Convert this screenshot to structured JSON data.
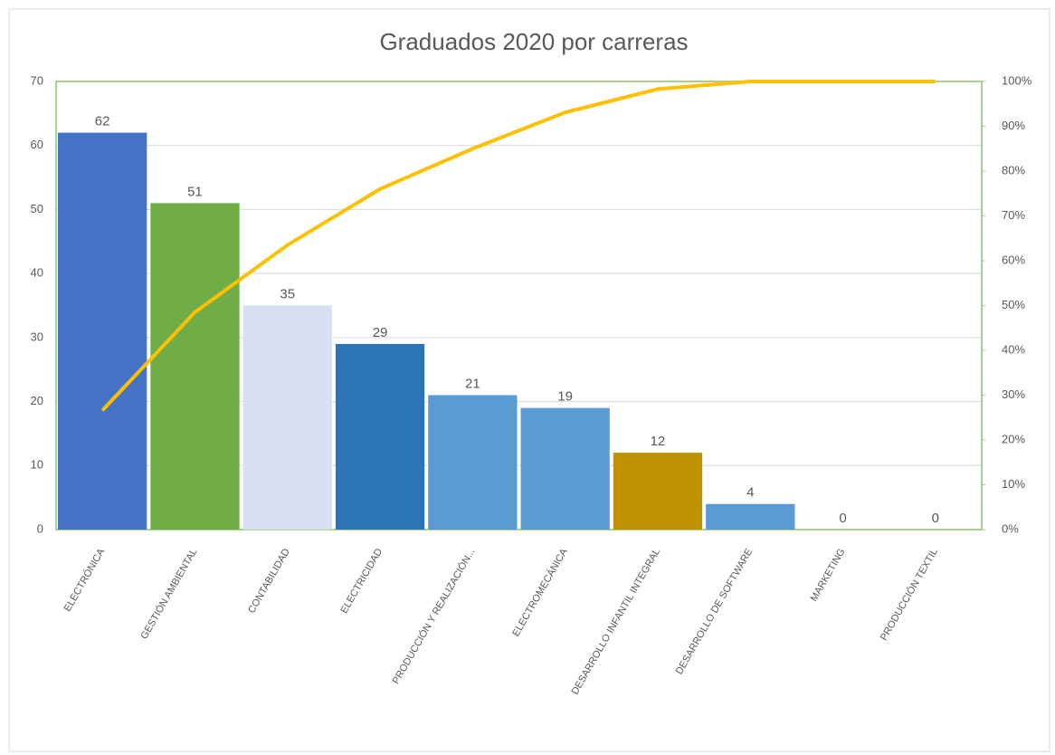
{
  "chart_data": {
    "type": "pareto",
    "title": "Graduados 2020 por carreras",
    "categories": [
      "ELECTRÓNICA",
      "GESTIÓN AMBIENTAL",
      "CONTABILIDAD",
      "ELECTRICIDAD",
      "PRODUCCIÓN Y REALIZACIÓN...",
      "ELECTROMECÁNICA",
      "DESARROLLO INFANTIL INTEGRAL",
      "DESARROLLO DE SOFTWARE",
      "MARKETING",
      "PRODUCCIÓN TEXTIL"
    ],
    "series": [
      {
        "values": [
          62,
          51,
          35,
          29,
          21,
          19,
          12,
          4,
          0,
          0
        ],
        "colors": [
          "#4472c4",
          "#70ad47",
          "#d6e0f2",
          "#2e75b6",
          "#5b9bd5",
          "#5b9bd5",
          "#bf9000",
          "#5b9bd5",
          "#5b9bd5",
          "#5b9bd5"
        ]
      },
      {
        "axis": "y2",
        "color": "#ffc000",
        "values": [
          26.6,
          48.5,
          63.5,
          76.0,
          85.0,
          93.1,
          98.3,
          100,
          100,
          100
        ]
      }
    ],
    "ylim": [
      0,
      70
    ],
    "yticks": [
      0,
      10,
      20,
      30,
      40,
      50,
      60,
      70
    ],
    "y2lim": [
      0,
      100
    ],
    "y2ticks": [
      {
        "value": 0,
        "label": "0%"
      },
      {
        "value": 10,
        "label": "10%"
      },
      {
        "value": 20,
        "label": "20%"
      },
      {
        "value": 30,
        "label": "30%"
      },
      {
        "value": 40,
        "label": "40%"
      },
      {
        "value": 50,
        "label": "50%"
      },
      {
        "value": 60,
        "label": "60%"
      },
      {
        "value": 70,
        "label": "70%"
      },
      {
        "value": 80,
        "label": "80%"
      },
      {
        "value": 90,
        "label": "90%"
      },
      {
        "value": 100,
        "label": "100%"
      }
    ],
    "grid": true
  }
}
